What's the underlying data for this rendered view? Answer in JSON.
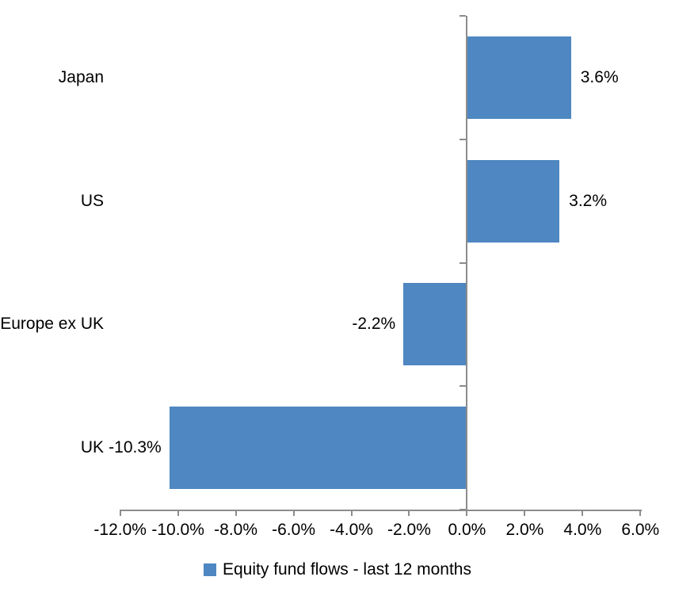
{
  "chart_data": {
    "type": "bar",
    "orientation": "horizontal",
    "title": "",
    "categories": [
      "Japan",
      "US",
      "Europe ex UK",
      "UK"
    ],
    "values": [
      3.6,
      3.2,
      -2.2,
      -10.3
    ],
    "data_labels": [
      "3.6%",
      "3.2%",
      "-2.2%",
      "-10.3%"
    ],
    "series_name": "Equity fund flows - last 12 months",
    "xlabel": "",
    "ylabel": "",
    "xlim": [
      -12,
      6
    ],
    "x_tick_step": 2,
    "x_tick_labels": [
      "-12.0%",
      "-10.0%",
      "-8.0%",
      "-6.0%",
      "-4.0%",
      "-2.0%",
      "0.0%",
      "2.0%",
      "4.0%",
      "6.0%"
    ],
    "grid": false,
    "legend_position": "bottom",
    "colors": {
      "bar": "#4e87c1",
      "axis": "#8c8c8c",
      "text": "#000000",
      "background": "#ffffff"
    }
  },
  "legend": {
    "label": "Equity fund flows - last 12 months"
  }
}
